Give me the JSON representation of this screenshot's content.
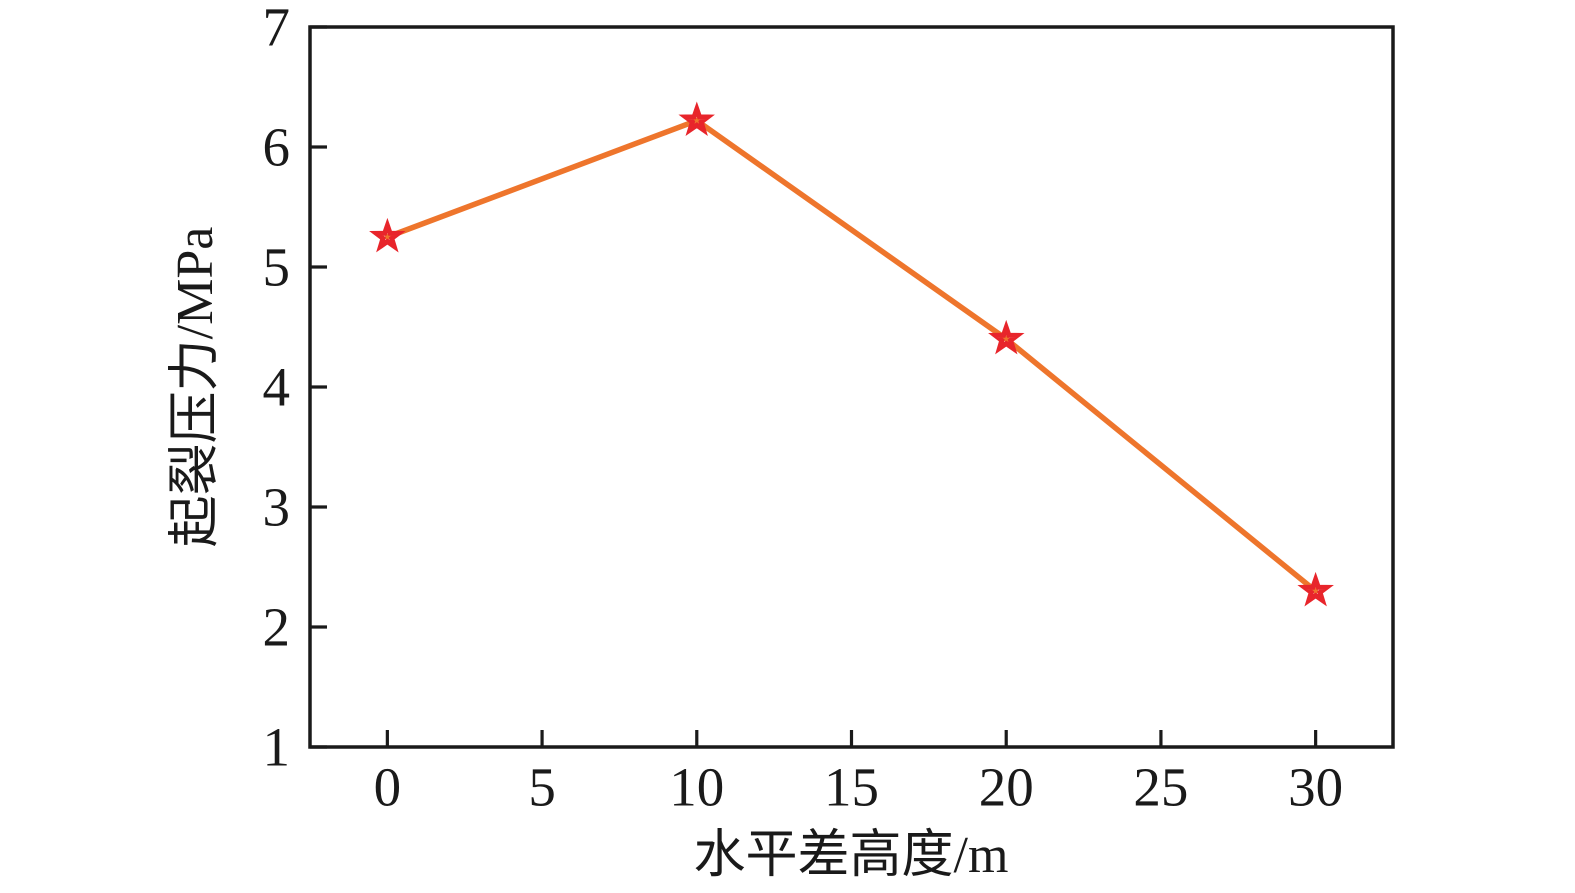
{
  "figure": {
    "background": "#ffffff"
  },
  "chart_data": {
    "type": "line",
    "title": "",
    "xlabel": "水平差高度/m",
    "ylabel": "起裂压力/MPa",
    "series": [
      {
        "x": [
          0,
          10,
          20,
          30
        ],
        "y": [
          5.25,
          6.22,
          4.4,
          2.3
        ],
        "line_color": "#EE752C",
        "marker": "open-star",
        "marker_color": "#E8252B"
      }
    ],
    "xlim": [
      -2.5,
      32.5
    ],
    "ylim": [
      1,
      7
    ],
    "x_ticks": [
      0,
      5,
      10,
      15,
      20,
      25,
      30
    ],
    "y_ticks": [
      1,
      2,
      3,
      4,
      5,
      6,
      7
    ],
    "grid": false,
    "legend": "none",
    "axis_color": "#1a1a1a",
    "background": "#ffffff"
  }
}
